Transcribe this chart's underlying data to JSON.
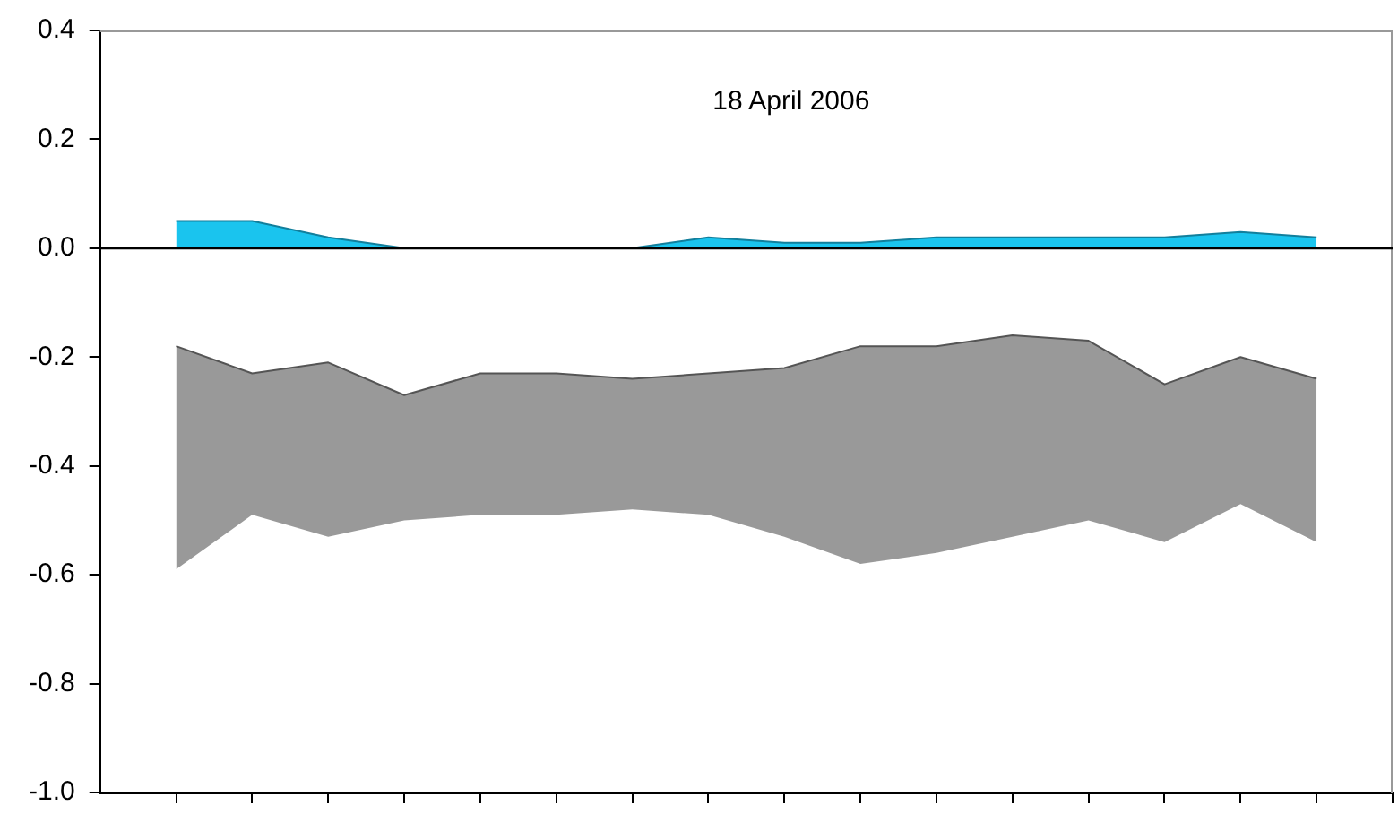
{
  "chart_data": {
    "type": "area",
    "title": "18 April 2006",
    "categories": [
      null,
      null,
      null,
      null,
      null,
      null,
      null,
      null,
      null,
      null,
      null,
      null,
      null,
      null,
      null,
      null
    ],
    "ylim": [
      -1.0,
      0.4
    ],
    "yticks": [
      {
        "value": -1.0,
        "label": "-1.0"
      },
      {
        "value": -0.8,
        "label": "-0.8"
      },
      {
        "value": -0.6,
        "label": "-0.6"
      },
      {
        "value": -0.4,
        "label": "-0.4"
      },
      {
        "value": -0.2,
        "label": "-0.2"
      },
      {
        "value": 0,
        "label": "0.0"
      },
      {
        "value": 0.2,
        "label": "0.2"
      },
      {
        "value": 0.4,
        "label": "0.4"
      }
    ],
    "tick_labels": "y",
    "grid": false,
    "legend": false,
    "ref_lines": [
      {
        "axis": "y",
        "value": 0,
        "color": "#000000"
      }
    ],
    "series": [
      {
        "color": "#1ac4ee",
        "values": [
          0.05,
          0.05,
          0.02,
          0.0,
          0.0,
          0.0,
          0.0,
          0.02,
          0.01,
          0.01,
          0.02,
          0.02,
          0.02,
          0.02,
          0.03,
          0.02
        ]
      },
      {
        "type": "line",
        "color": "#555555",
        "values": [
          -0.18,
          -0.23,
          -0.21,
          -0.27,
          -0.23,
          -0.23,
          -0.24,
          -0.23,
          -0.22,
          -0.18,
          -0.18,
          -0.16,
          -0.17,
          -0.25,
          -0.2,
          -0.24
        ],
        "lower": [
          -0.59,
          -0.49,
          -0.53,
          -0.5,
          -0.49,
          -0.49,
          -0.48,
          -0.49,
          -0.53,
          -0.58,
          -0.56,
          -0.53,
          -0.5,
          -0.54,
          -0.47,
          -0.54
        ],
        "upper": [
          -0.18,
          -0.23,
          -0.21,
          -0.27,
          -0.23,
          -0.23,
          -0.24,
          -0.23,
          -0.22,
          -0.18,
          -0.18,
          -0.16,
          -0.17,
          -0.25,
          -0.2,
          -0.24
        ]
      }
    ]
  }
}
